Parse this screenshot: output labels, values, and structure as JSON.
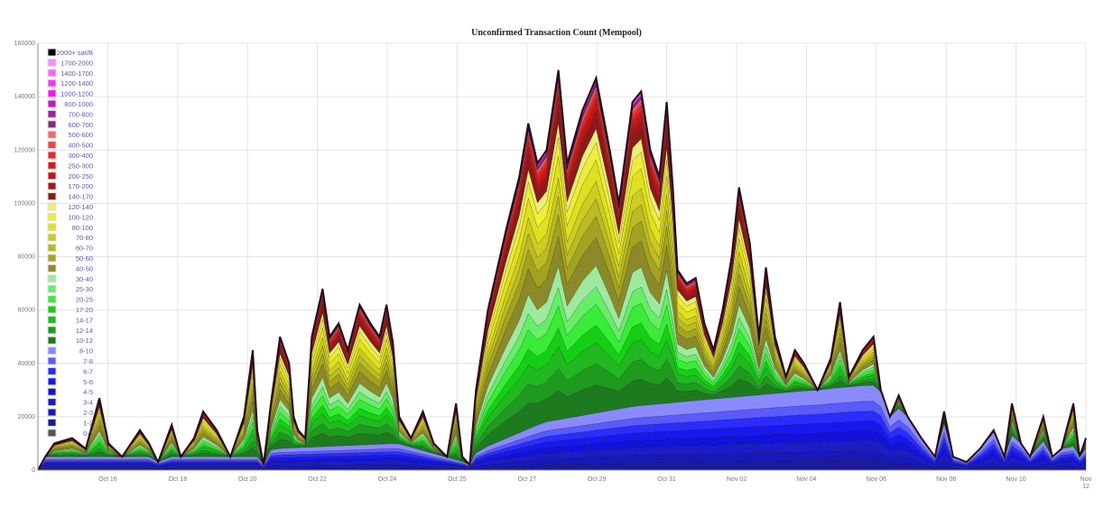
{
  "chart_data": {
    "type": "area",
    "stacked": true,
    "title": "Unconfirmed Transaction Count (Mempool)",
    "xlabel": "",
    "ylabel": "",
    "ylim": [
      0,
      160000
    ],
    "yticks": [
      0,
      20000,
      40000,
      60000,
      80000,
      100000,
      120000,
      140000,
      160000
    ],
    "xlim": [
      0,
      30
    ],
    "x_unit": "days",
    "xticks": [
      {
        "x": 2,
        "label": "Oct 16"
      },
      {
        "x": 4,
        "label": "Oct 18"
      },
      {
        "x": 6,
        "label": "Oct 20"
      },
      {
        "x": 8,
        "label": "Oct 22"
      },
      {
        "x": 10,
        "label": "Oct 24"
      },
      {
        "x": 12,
        "label": "Oct 25"
      },
      {
        "x": 14,
        "label": "Oct 27"
      },
      {
        "x": 16,
        "label": "Oct 29"
      },
      {
        "x": 18,
        "label": "Oct 31"
      },
      {
        "x": 20,
        "label": "Nov 02"
      },
      {
        "x": 22,
        "label": "Nov 04"
      },
      {
        "x": 24,
        "label": "Nov 06"
      },
      {
        "x": 26,
        "label": "Nov 08"
      },
      {
        "x": 28,
        "label": "Nov 10"
      },
      {
        "x": 30,
        "label": "Nov 12"
      }
    ],
    "grid": true,
    "legend_position": "top-left",
    "series_names": [
      "0-1",
      "1-2",
      "2-3",
      "3-4",
      "4-5",
      "5-6",
      "6-7",
      "7-8",
      "8-10",
      "10-12",
      "12-14",
      "14-17",
      "17-20",
      "20-25",
      "25-30",
      "30-40",
      "40-50",
      "50-60",
      "60-70",
      "70-80",
      "80-100",
      "100-120",
      "120-140",
      "140-170",
      "170-200",
      "200-250",
      "250-300",
      "300-400",
      "400-500",
      "500-600",
      "600-700",
      "700-800",
      "800-1000",
      "1000-1200",
      "1200-1400",
      "1400-1700",
      "1700-2000",
      "2000+ sat/B"
    ],
    "series_colors": [
      "#555555",
      "#1a1a9a",
      "#1818b8",
      "#1c1cc8",
      "#1212dc",
      "#1818ee",
      "#2c2cff",
      "#5a5aff",
      "#8a8aff",
      "#1e7a1e",
      "#1f9a1f",
      "#22b822",
      "#14d014",
      "#38ec38",
      "#66ee66",
      "#9fe89f",
      "#8a8a2a",
      "#a3a321",
      "#bbbb22",
      "#cccc22",
      "#e0e020",
      "#eded3a",
      "#eded7a",
      "#8b1a1a",
      "#a31616",
      "#c01616",
      "#de1616",
      "#ee2424",
      "#ee4646",
      "#ee6a6a",
      "#8b2a7a",
      "#aa1aaa",
      "#cc11cc",
      "#ff11ff",
      "#ff33ff",
      "#ff66ff",
      "#ff88ff",
      "#000000"
    ],
    "upper_band_weights": [
      8,
      6,
      6,
      5,
      6,
      5,
      6,
      8,
      6,
      5,
      5,
      6,
      5,
      4,
      3,
      2,
      2,
      1.5,
      1.5,
      1,
      1,
      0.3,
      0.3,
      0.3,
      0.3,
      0.3,
      0.3,
      0.3,
      0.3
    ],
    "total": {
      "x": [
        0,
        0.21,
        0.47,
        0.98,
        1.37,
        1.76,
        2.02,
        2.41,
        2.92,
        3.18,
        3.44,
        3.83,
        4.09,
        4.47,
        4.73,
        5.12,
        5.51,
        5.9,
        6.15,
        6.28,
        6.46,
        6.67,
        6.93,
        7.19,
        7.32,
        7.45,
        7.65,
        7.84,
        8.15,
        8.35,
        8.61,
        8.87,
        9.21,
        9.52,
        9.78,
        9.98,
        10.16,
        10.34,
        10.68,
        11.02,
        11.33,
        11.71,
        11.97,
        12.15,
        12.36,
        12.54,
        12.88,
        13.4,
        13.78,
        14.04,
        14.3,
        14.56,
        14.9,
        15.15,
        15.59,
        15.98,
        16.37,
        16.63,
        17.02,
        17.27,
        17.53,
        17.79,
        18,
        18.18,
        18.31,
        18.57,
        18.83,
        19.08,
        19.34,
        19.6,
        19.86,
        20.07,
        20.38,
        20.64,
        20.84,
        21.1,
        21.41,
        21.67,
        21.93,
        22.32,
        22.7,
        22.96,
        23.22,
        23.61,
        23.92,
        24.13,
        24.39,
        24.64,
        24.9,
        25.29,
        25.68,
        25.94,
        26.2,
        26.58,
        26.97,
        27.36,
        27.67,
        27.88,
        28.14,
        28.4,
        28.78,
        29.04,
        29.3,
        29.64,
        29.82,
        30
      ],
      "y": [
        0,
        5000,
        10000,
        12000,
        8000,
        27000,
        10000,
        5000,
        15000,
        10000,
        3000,
        17000,
        5000,
        12000,
        22000,
        15000,
        5000,
        20000,
        45000,
        15000,
        2000,
        25000,
        50000,
        40000,
        20000,
        15000,
        12000,
        50000,
        68000,
        50000,
        55000,
        45000,
        62000,
        55000,
        50000,
        62000,
        48000,
        20000,
        12000,
        22000,
        10000,
        5000,
        25000,
        5000,
        2000,
        30000,
        60000,
        90000,
        110000,
        130000,
        115000,
        120000,
        150000,
        115000,
        135000,
        147000,
        120000,
        100000,
        138000,
        142000,
        120000,
        110000,
        138000,
        105000,
        75000,
        70000,
        72000,
        55000,
        45000,
        60000,
        80000,
        106000,
        85000,
        50000,
        76000,
        50000,
        35000,
        45000,
        40000,
        30000,
        42000,
        63000,
        35000,
        45000,
        50000,
        30000,
        20000,
        28000,
        20000,
        12000,
        5000,
        22000,
        5000,
        3000,
        8000,
        15000,
        5000,
        25000,
        10000,
        5000,
        20000,
        5000,
        8000,
        25000,
        5000,
        12000
      ]
    },
    "below_10_satB": {
      "x": [
        0,
        6.5,
        6.7,
        10.3,
        12.2,
        12.7,
        14.5,
        17.1,
        19.6,
        23.9,
        24.9,
        30
      ],
      "y": [
        5000,
        5000,
        8000,
        10000,
        3000,
        8000,
        18000,
        24000,
        27000,
        32000,
        20000,
        8000
      ]
    }
  }
}
